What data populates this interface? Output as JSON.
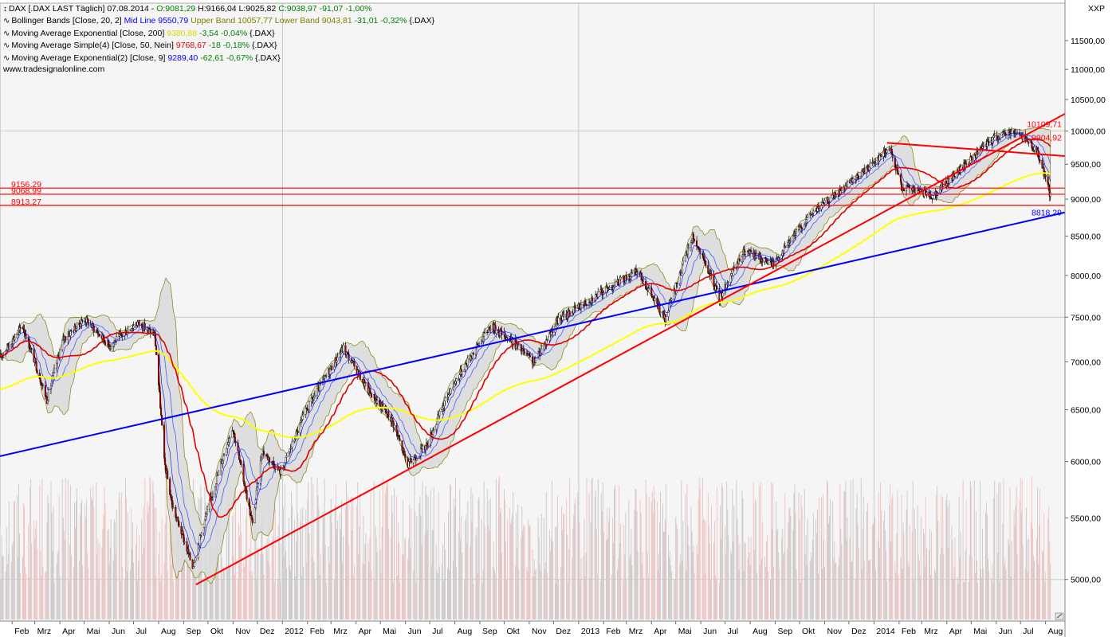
{
  "header": {
    "title_line": [
      {
        "text": "DAX [.DAX LAST Täglich] 07.08.2014 - ",
        "color": "#000000"
      },
      {
        "text": "O:9081,29",
        "color": "#008000"
      },
      {
        "text": " H:9166,04 L:9025,82 ",
        "color": "#000000"
      },
      {
        "text": "C:9038,97",
        "color": "#008000"
      },
      {
        "text": " -91,07 -1,00%",
        "color": "#008000"
      }
    ],
    "indicator_lines": [
      [
        {
          "text": "Bollinger Bands [Close, 20, 2] ",
          "color": "#000000"
        },
        {
          "text": "Mid Line 9550,79",
          "color": "#0000ff"
        },
        {
          "text": " Upper Band 10057,77",
          "color": "#808000"
        },
        {
          "text": " Lower Band 9043,81",
          "color": "#808000"
        },
        {
          "text": " -31,01 -0,32%",
          "color": "#008000"
        },
        {
          "text": " {.DAX}",
          "color": "#000000"
        }
      ],
      [
        {
          "text": "Moving Average Exponential [Close, 200] ",
          "color": "#000000"
        },
        {
          "text": "9380,88",
          "color": "#d7d700"
        },
        {
          "text": " -3,54 -0,04%",
          "color": "#008000"
        },
        {
          "text": " {.DAX}",
          "color": "#000000"
        }
      ],
      [
        {
          "text": "Moving Average Simple(4) [Close, 50, Nein] ",
          "color": "#000000"
        },
        {
          "text": "9768,67",
          "color": "#e00000"
        },
        {
          "text": " -18 -0,18%",
          "color": "#008000"
        },
        {
          "text": " {.DAX}",
          "color": "#000000"
        }
      ],
      [
        {
          "text": "Moving Average Exponential(2) [Close, 9] ",
          "color": "#000000"
        },
        {
          "text": "9289,40",
          "color": "#0000ff"
        },
        {
          "text": " -62,61 -0,67%",
          "color": "#008000"
        },
        {
          "text": " {.DAX}",
          "color": "#000000"
        }
      ]
    ],
    "watermark": "www.tradesignalonline.com",
    "corner": "XXP"
  },
  "chart_data": {
    "type": "line",
    "instrument": "DAX",
    "y_scale": "log",
    "ylim": [
      4700,
      12200
    ],
    "grid": true,
    "y_ticks": [
      "11500,00",
      "11000,00",
      "10500,00",
      "10000,00",
      "9500,00",
      "9000,00",
      "8500,00",
      "8000,00",
      "7500,00",
      "7000,00",
      "6500,00",
      "6000,00",
      "5500,00",
      "5000,00"
    ],
    "x_tick_labels": [
      "Feb",
      "Mrz",
      "Apr",
      "Mai",
      "Jun",
      "Jul",
      "Aug",
      "Sep",
      "Okt",
      "Nov",
      "Dez",
      "2012",
      "Feb",
      "Mrz",
      "Apr",
      "Mai",
      "Jun",
      "Jul",
      "Aug",
      "Sep",
      "Okt",
      "Nov",
      "Dez",
      "2013",
      "Feb",
      "Mrz",
      "Apr",
      "Mai",
      "Jun",
      "Jul",
      "Aug",
      "Sep",
      "Okt",
      "Nov",
      "Dez",
      "2014",
      "Feb",
      "Mrz",
      "Apr",
      "Mai",
      "Jun",
      "Jul",
      "Aug"
    ],
    "x_range": [
      "2011-01-17",
      "2014-08-25"
    ],
    "price_anchors": [
      [
        "2011-01-17",
        7050
      ],
      [
        "2011-02-14",
        7400
      ],
      [
        "2011-03-16",
        6600
      ],
      [
        "2011-04-05",
        7250
      ],
      [
        "2011-05-02",
        7480
      ],
      [
        "2011-06-01",
        7180
      ],
      [
        "2011-07-06",
        7440
      ],
      [
        "2011-07-27",
        7300
      ],
      [
        "2011-08-08",
        6000
      ],
      [
        "2011-08-18",
        5600
      ],
      [
        "2011-09-12",
        5100
      ],
      [
        "2011-09-26",
        5450
      ],
      [
        "2011-10-31",
        6330
      ],
      [
        "2011-11-25",
        5440
      ],
      [
        "2011-12-07",
        6100
      ],
      [
        "2011-12-30",
        5900
      ],
      [
        "2012-01-31",
        6500
      ],
      [
        "2012-03-16",
        7150
      ],
      [
        "2012-04-16",
        6700
      ],
      [
        "2012-05-15",
        6400
      ],
      [
        "2012-06-04",
        5970
      ],
      [
        "2012-06-27",
        6150
      ],
      [
        "2012-07-26",
        6700
      ],
      [
        "2012-09-14",
        7400
      ],
      [
        "2012-10-08",
        7250
      ],
      [
        "2012-11-07",
        6990
      ],
      [
        "2012-12-05",
        7450
      ],
      [
        "2013-01-25",
        7770
      ],
      [
        "2013-03-15",
        8050
      ],
      [
        "2013-04-18",
        7470
      ],
      [
        "2013-05-22",
        8500
      ],
      [
        "2013-06-24",
        7730
      ],
      [
        "2013-07-25",
        8300
      ],
      [
        "2013-08-30",
        8150
      ],
      [
        "2013-10-15",
        8800
      ],
      [
        "2013-12-06",
        9250
      ],
      [
        "2014-01-20",
        9750
      ],
      [
        "2014-02-04",
        9180
      ],
      [
        "2014-03-14",
        9050
      ],
      [
        "2014-04-11",
        9350
      ],
      [
        "2014-05-30",
        9900
      ],
      [
        "2014-06-20",
        10000
      ],
      [
        "2014-07-07",
        9900
      ],
      [
        "2014-07-25",
        9600
      ],
      [
        "2014-08-07",
        9039
      ]
    ],
    "series": [
      {
        "name": "Bollinger Bands [Close, 20, 2]",
        "color": "#808000",
        "last": {
          "mid": 9550.79,
          "upper": 10057.77,
          "lower": 9043.81
        }
      },
      {
        "name": "Moving Average Exponential [Close, 200]",
        "color": "#ffff00",
        "last": 9380.88
      },
      {
        "name": "Moving Average Simple(4) [Close, 50, Nein]",
        "color": "#e00000",
        "last": 9768.67
      },
      {
        "name": "Moving Average Exponential(2) [Close, 9]",
        "color": "#0000ff",
        "last": 9289.4
      }
    ],
    "horizontal_levels": [
      {
        "value": 9156.29,
        "label": "9156,29",
        "color": "#ff0000"
      },
      {
        "value": 9068.99,
        "label": "9068,99",
        "color": "#ff0000"
      },
      {
        "value": 8913.27,
        "label": "8913,27",
        "color": "#ff0000"
      }
    ],
    "trendlines": [
      {
        "color": "#0000ff",
        "from": [
          "2011-01-17",
          6050
        ],
        "to": [
          "2014-08-25",
          8818.29
        ],
        "label": "8818,29"
      },
      {
        "color": "#ff0000",
        "from": [
          "2011-09-16",
          4960
        ],
        "to": [
          "2014-08-25",
          10270
        ]
      },
      {
        "color": "#ff0000",
        "from": [
          "2014-01-17",
          9820
        ],
        "to": [
          "2014-08-25",
          9620
        ]
      }
    ],
    "end_labels": [
      {
        "value": 10109.71,
        "label": "10109,71",
        "color": "#ff0000"
      },
      {
        "value": 9904.92,
        "label": "9904,92",
        "color": "#ff0000"
      },
      {
        "value": 8818.29,
        "label": "8818,29",
        "color": "#0000ff"
      }
    ],
    "volume": {
      "color": "#c8c8c8",
      "color_down": "#f0c0c0"
    }
  }
}
